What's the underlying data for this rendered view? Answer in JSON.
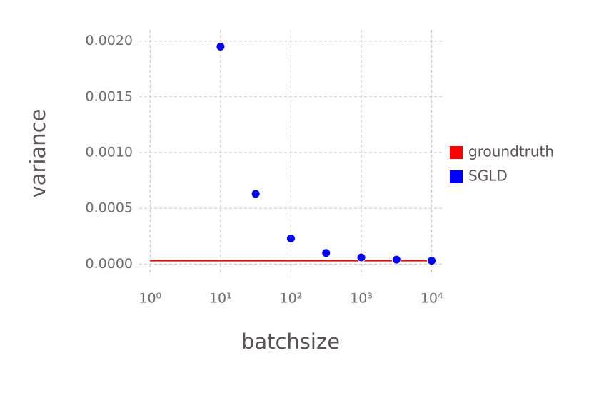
{
  "chart_data": {
    "type": "scatter",
    "x_label": "batchsize",
    "y_label": "variance",
    "xscale": "log",
    "xlim": [
      0.7,
      15000
    ],
    "xticks": [
      {
        "value": 1,
        "label": "10⁰"
      },
      {
        "value": 10,
        "label": "10¹"
      },
      {
        "value": 100,
        "label": "10²"
      },
      {
        "value": 1000,
        "label": "10³"
      },
      {
        "value": 10000,
        "label": "10⁴"
      }
    ],
    "ylim": [
      -0.0001,
      0.0021
    ],
    "yticks": [
      {
        "value": 0,
        "label": "0.0000"
      },
      {
        "value": 0.0005,
        "label": "0.0005"
      },
      {
        "value": 0.001,
        "label": "0.0010"
      },
      {
        "value": 0.0015,
        "label": "0.0015"
      },
      {
        "value": 0.002,
        "label": "0.0020"
      }
    ],
    "grid": true,
    "legend": "right",
    "series": [
      {
        "name": "groundtruth",
        "type": "line",
        "color": "#ff0000",
        "x": [
          1,
          10000
        ],
        "values": [
          3e-05,
          3e-05
        ]
      },
      {
        "name": "SGLD",
        "type": "scatter",
        "color": "#0000ff",
        "x": [
          10,
          31.6,
          100,
          316,
          1000,
          3162,
          10000
        ],
        "values": [
          0.00195,
          0.00063,
          0.00023,
          0.0001,
          6e-05,
          4e-05,
          3e-05
        ]
      }
    ]
  }
}
